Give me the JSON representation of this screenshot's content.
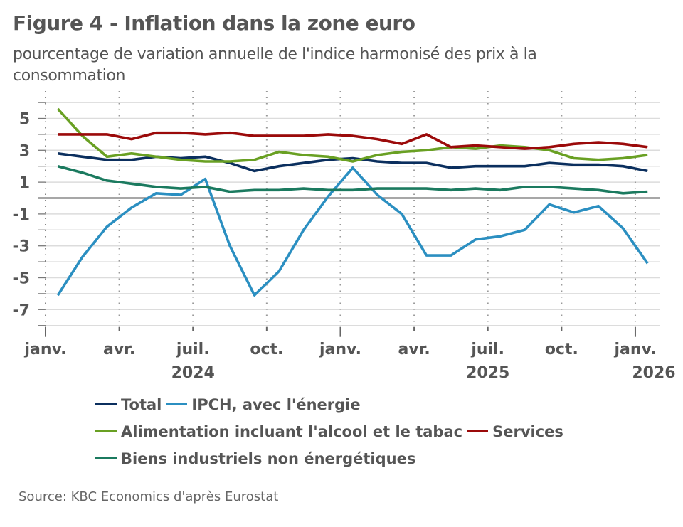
{
  "header": {
    "title": "Figure 4 - Inflation dans la zone euro",
    "subtitle": "pourcentage de variation annuelle de l'indice harmonisé des prix à la consommation"
  },
  "source": "Source: KBC Economics d'après Eurostat",
  "chart_data": {
    "type": "line",
    "title": "Figure 4 - Inflation dans la zone euro",
    "subtitle": "pourcentage de variation annuelle de l'indice harmonisé des prix à la consommation",
    "xlabel": "",
    "ylabel": "",
    "ylim": [
      -8,
      6
    ],
    "yticks": [
      5,
      3,
      1,
      -1,
      -3,
      -5,
      -7
    ],
    "grid": true,
    "legend_position": "bottom",
    "x": [
      "2024-01",
      "2024-02",
      "2024-03",
      "2024-04",
      "2024-05",
      "2024-06",
      "2024-07",
      "2024-08",
      "2024-09",
      "2024-10",
      "2024-11",
      "2024-12",
      "2025-01",
      "2025-02",
      "2025-03",
      "2025-04",
      "2025-05",
      "2025-06",
      "2025-07",
      "2025-08",
      "2025-09",
      "2025-10",
      "2025-11",
      "2025-12",
      "2026-01"
    ],
    "xticks": [
      {
        "label": "janv.",
        "year": "",
        "index": 0
      },
      {
        "label": "avr.",
        "year": "",
        "index": 3
      },
      {
        "label": "juil.",
        "year": "2024",
        "index": 6
      },
      {
        "label": "oct.",
        "year": "",
        "index": 9
      },
      {
        "label": "janv.",
        "year": "",
        "index": 12
      },
      {
        "label": "avr.",
        "year": "",
        "index": 15
      },
      {
        "label": "juil.",
        "year": "2025",
        "index": 18
      },
      {
        "label": "oct.",
        "year": "",
        "index": 21
      },
      {
        "label": "janv.",
        "year": "2026",
        "index": 24
      }
    ],
    "series": [
      {
        "name": "Total",
        "color": "#0b2f5e",
        "values": [
          2.8,
          2.6,
          2.4,
          2.4,
          2.6,
          2.5,
          2.6,
          2.2,
          1.7,
          2.0,
          2.2,
          2.4,
          2.5,
          2.3,
          2.2,
          2.2,
          1.9,
          2.0,
          2.0,
          2.0,
          2.2,
          2.1,
          2.1,
          2.0,
          1.7
        ]
      },
      {
        "name": "IPCH, avec l'énergie",
        "color": "#2b8fc1",
        "values": [
          -6.1,
          -3.7,
          -1.8,
          -0.6,
          0.3,
          0.2,
          1.2,
          -3.0,
          -6.1,
          -4.6,
          -2.0,
          0.1,
          1.9,
          0.2,
          -1.0,
          -3.6,
          -3.6,
          -2.6,
          -2.4,
          -2.0,
          -0.4,
          -0.9,
          -0.5,
          -1.9,
          -4.1
        ]
      },
      {
        "name": "Alimentation incluant l'alcool et le tabac",
        "color": "#69a023",
        "values": [
          5.6,
          3.9,
          2.6,
          2.8,
          2.6,
          2.4,
          2.3,
          2.3,
          2.4,
          2.9,
          2.7,
          2.6,
          2.3,
          2.7,
          2.9,
          3.0,
          3.2,
          3.1,
          3.3,
          3.2,
          3.0,
          2.5,
          2.4,
          2.5,
          2.7
        ]
      },
      {
        "name": "Services",
        "color": "#9b0a0a",
        "values": [
          4.0,
          4.0,
          4.0,
          3.7,
          4.1,
          4.1,
          4.0,
          4.1,
          3.9,
          3.9,
          3.9,
          4.0,
          3.9,
          3.7,
          3.4,
          4.0,
          3.2,
          3.3,
          3.2,
          3.1,
          3.2,
          3.4,
          3.5,
          3.4,
          3.2
        ]
      },
      {
        "name": "Biens industriels non énergétiques",
        "color": "#1b7a5f",
        "values": [
          2.0,
          1.6,
          1.1,
          0.9,
          0.7,
          0.6,
          0.7,
          0.4,
          0.5,
          0.5,
          0.6,
          0.5,
          0.5,
          0.6,
          0.6,
          0.6,
          0.5,
          0.6,
          0.5,
          0.7,
          0.7,
          0.6,
          0.5,
          0.3,
          0.4
        ]
      }
    ]
  },
  "legend": {
    "rows": [
      [
        0,
        1
      ],
      [
        2,
        3
      ],
      [
        4
      ]
    ]
  }
}
